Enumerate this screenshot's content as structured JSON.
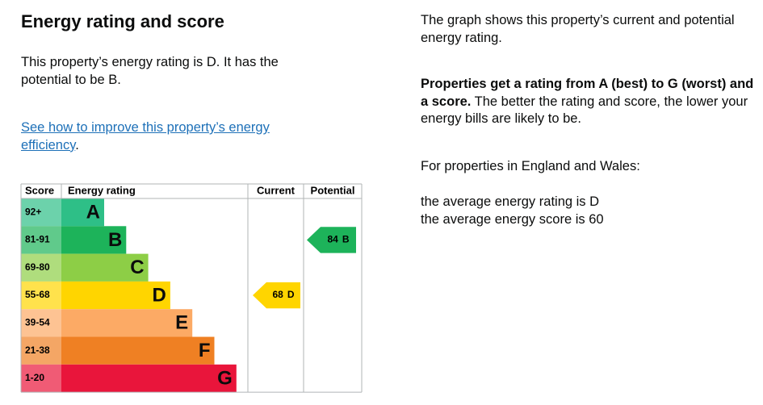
{
  "heading": "Energy rating and score",
  "intro": "This property’s energy rating is D. It has the potential to be B.",
  "link": {
    "text": "See how to improve this property’s energy efficiency",
    "after": "."
  },
  "aside": {
    "graph_note": "The graph shows this property’s current and potential energy rating.",
    "rating_note": {
      "bold": "Properties get a rating from A (best) to G (worst) and a score.",
      "rest": " The better the rating and score, the lower your energy bills are likely to be."
    },
    "region": "For properties in England and Wales:",
    "average_rating": "the average energy rating is D",
    "average_score": "the average energy score is 60"
  },
  "graph": {
    "headers": {
      "score": "Score",
      "rating": "Energy rating",
      "current": "Current",
      "potential": "Potential"
    },
    "bands": [
      {
        "range": "92+",
        "letter": "A",
        "color": "#2ebf87"
      },
      {
        "range": "81-91",
        "letter": "B",
        "color": "#1db35a"
      },
      {
        "range": "69-80",
        "letter": "C",
        "color": "#8dce46"
      },
      {
        "range": "55-68",
        "letter": "D",
        "color": "#ffd500"
      },
      {
        "range": "39-54",
        "letter": "E",
        "color": "#fcaa65"
      },
      {
        "range": "21-38",
        "letter": "F",
        "color": "#ef8023"
      },
      {
        "range": "1-20",
        "letter": "G",
        "color": "#e9153b"
      }
    ],
    "current": {
      "score": 68,
      "letter": "D"
    },
    "potential": {
      "score": 84,
      "letter": "B"
    }
  }
}
